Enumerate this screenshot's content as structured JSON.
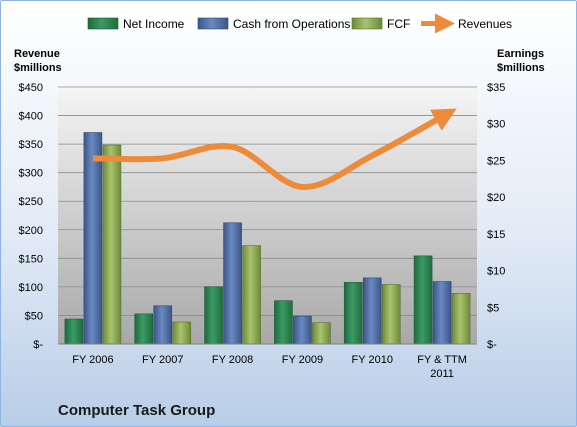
{
  "chart_data": {
    "type": "bar",
    "title": "Computer Task Group",
    "categories": [
      "FY 2006",
      "FY 2007",
      "FY 2008",
      "FY 2009",
      "FY 2010",
      "FY & TTM 2011"
    ],
    "category_labels": [
      [
        "FY 2006"
      ],
      [
        "FY 2007"
      ],
      [
        "FY 2008"
      ],
      [
        "FY 2009"
      ],
      [
        "FY 2010"
      ],
      [
        "FY & TTM",
        "2011"
      ]
    ],
    "left_axis": {
      "title_lines": [
        "Revenue",
        "$millions"
      ],
      "min": 0,
      "max": 450,
      "step": 50,
      "tick_labels": [
        "$-",
        "$50",
        "$100",
        "$150",
        "$200",
        "$250",
        "$300",
        "$350",
        "$400",
        "$450"
      ]
    },
    "right_axis": {
      "title_lines": [
        "Earnings",
        "$millions"
      ],
      "min": 0,
      "max": 35,
      "step": 5,
      "tick_labels": [
        "$-",
        "$5",
        "$10",
        "$15",
        "$20",
        "$25",
        "$30",
        "$35"
      ]
    },
    "series": [
      {
        "name": "Net Income",
        "axis": "right",
        "kind": "bar",
        "color": "#2e8b57",
        "values": [
          3.4,
          4.1,
          7.8,
          5.9,
          8.4,
          12.0
        ]
      },
      {
        "name": "Cash from Operations",
        "axis": "right",
        "kind": "bar",
        "color": "#4f6fa8",
        "values": [
          28.8,
          5.2,
          16.5,
          3.8,
          9.0,
          8.5
        ]
      },
      {
        "name": "FCF",
        "axis": "right",
        "kind": "bar",
        "color": "#8faa55",
        "values": [
          27.1,
          3.0,
          13.4,
          2.9,
          8.1,
          6.9
        ]
      },
      {
        "name": "Revenues",
        "axis": "left",
        "kind": "line",
        "color": "#ed8b3a",
        "values": [
          325,
          325,
          345,
          275,
          330,
          398
        ]
      }
    ],
    "legend_position": "top",
    "grid": true
  }
}
